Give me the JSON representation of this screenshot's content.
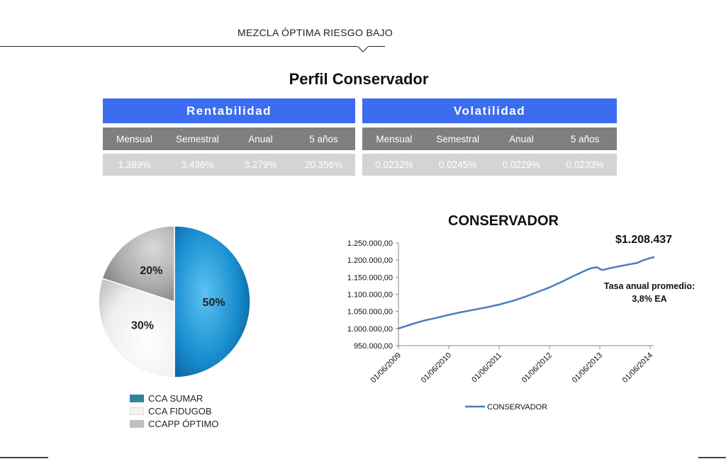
{
  "header": {
    "section_title": "MEZCLA ÓPTIMA RIESGO BAJO"
  },
  "page_title": "Perfil Conservador",
  "rentabilidad": {
    "title": "Rentabilidad",
    "columns": [
      "Mensual",
      "Semestral",
      "Anual",
      "5  años"
    ],
    "values": [
      "1,389%",
      "3,496%",
      "3,279%",
      "20,356%"
    ]
  },
  "volatilidad": {
    "title": "Volatilidad",
    "columns": [
      "Mensual",
      "Semestral",
      "Anual",
      "5 años"
    ],
    "values": [
      "0,0232%",
      "0,0245%",
      "0,0229%",
      "0,0233%"
    ]
  },
  "callouts": {
    "final_value": "$1.208.437",
    "rate_line1": "Tasa anual promedio:",
    "rate_line2": "3,8%  EA"
  },
  "chart_data": [
    {
      "type": "pie",
      "title": "",
      "slices": [
        {
          "label": "CCA SUMAR",
          "value": 50,
          "display": "50%",
          "color": "#1a8fd0"
        },
        {
          "label": "CCA FIDUGOB",
          "value": 30,
          "display": "30%",
          "color": "#ececec"
        },
        {
          "label": "CCAPP ÓPTIMO",
          "value": 20,
          "display": "20%",
          "color": "#a9a9a9"
        }
      ],
      "legend": [
        {
          "label": "CCA SUMAR",
          "color": "#31849b"
        },
        {
          "label": "CCA FIDUGOB",
          "color": "#f2f2f2"
        },
        {
          "label": "CCAPP ÓPTIMO",
          "color": "#bfbfbf"
        }
      ]
    },
    {
      "type": "line",
      "title": "CONSERVADOR",
      "xlabel": "",
      "ylabel": "",
      "ylim": [
        950000,
        1250000
      ],
      "yticks": [
        950000,
        1000000,
        1050000,
        1100000,
        1150000,
        1200000,
        1250000
      ],
      "ytick_labels": [
        "950.000,00",
        "1.000.000,00",
        "1.050.000,00",
        "1.100.000,00",
        "1.150.000,00",
        "1.200.000,00",
        "1.250.000,00"
      ],
      "xlim": [
        2009.0,
        2014.07
      ],
      "xticks": [
        2009.0,
        2010.0,
        2011.0,
        2012.0,
        2013.0,
        2014.0
      ],
      "xtick_labels": [
        "01/06/2009",
        "01/06/2010",
        "01/06/2011",
        "01/06/2012",
        "01/06/2013",
        "01/06/2014"
      ],
      "grid": false,
      "legend_position": "bottom",
      "series": [
        {
          "name": "CONSERVADOR",
          "color": "#4a7ebb",
          "x": [
            2009.0,
            2009.25,
            2009.5,
            2009.75,
            2010.0,
            2010.25,
            2010.5,
            2010.75,
            2011.0,
            2011.25,
            2011.5,
            2011.75,
            2012.0,
            2012.25,
            2012.5,
            2012.75,
            2012.85,
            2012.95,
            2013.0,
            2013.05,
            2013.25,
            2013.5,
            2013.75,
            2013.85,
            2014.0,
            2014.07
          ],
          "values": [
            1000000,
            1012000,
            1023000,
            1031000,
            1040000,
            1048000,
            1055000,
            1062000,
            1070000,
            1080000,
            1092000,
            1106000,
            1120000,
            1137000,
            1155000,
            1172000,
            1177000,
            1179000,
            1174000,
            1171000,
            1178000,
            1185000,
            1192000,
            1199000,
            1206000,
            1208437
          ]
        }
      ]
    }
  ]
}
